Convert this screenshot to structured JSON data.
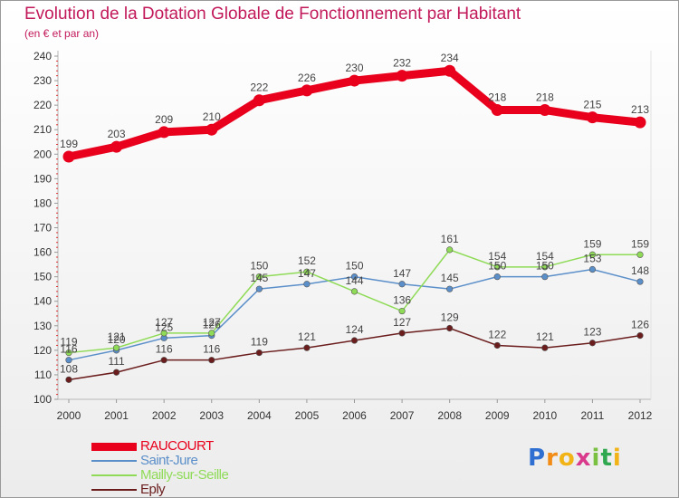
{
  "chart_data": {
    "type": "line",
    "title": "Evolution de la Dotation Globale de Fonctionnement par Habitant",
    "subtitle": "(en € et par an)",
    "x": [
      "2000",
      "2001",
      "2002",
      "2003",
      "2004",
      "2005",
      "2006",
      "2007",
      "2008",
      "2009",
      "2010",
      "2011",
      "2012"
    ],
    "ylim": [
      100,
      240
    ],
    "yticks": [
      100,
      110,
      120,
      130,
      140,
      150,
      160,
      170,
      180,
      190,
      200,
      210,
      220,
      230,
      240
    ],
    "grid": false,
    "legend_position": "bottom-left",
    "series": [
      {
        "name": "RAUCOURT",
        "color": "#e8001c",
        "values": [
          199,
          203,
          209,
          210,
          222,
          226,
          230,
          232,
          234,
          218,
          218,
          215,
          213
        ]
      },
      {
        "name": "Saint-Jure",
        "color": "#5b8fc9",
        "values": [
          116,
          120,
          125,
          126,
          145,
          147,
          150,
          147,
          145,
          150,
          150,
          153,
          148
        ]
      },
      {
        "name": "Mailly-sur-Seille",
        "color": "#8fdb57",
        "values": [
          119,
          121,
          127,
          127,
          150,
          152,
          144,
          136,
          161,
          154,
          154,
          159,
          159
        ]
      },
      {
        "name": "Eply",
        "color": "#6b1d1d",
        "values": [
          108,
          111,
          116,
          116,
          119,
          121,
          124,
          127,
          129,
          122,
          121,
          123,
          126
        ]
      }
    ]
  },
  "logo": {
    "letters": [
      "P",
      "r",
      "o",
      "x",
      "i",
      "t",
      "i"
    ],
    "colors": [
      "#2f6fd1",
      "#f28c16",
      "#f2b316",
      "#d93a8c",
      "#7ac142",
      "#2fa84f",
      "#f2b316"
    ]
  }
}
